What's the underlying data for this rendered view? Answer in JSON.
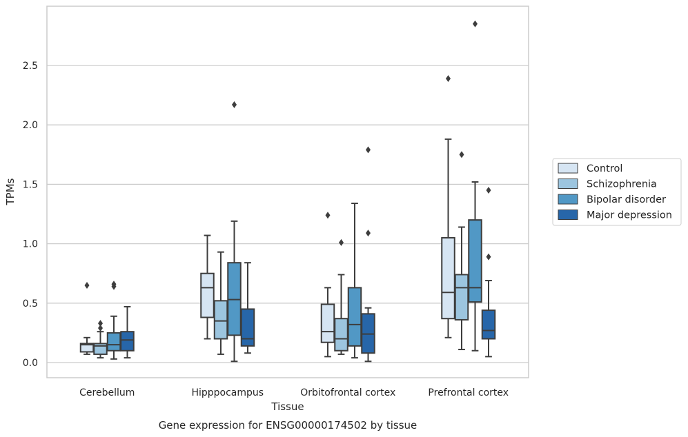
{
  "chart_data": {
    "type": "box",
    "xlabel": "Tissue",
    "ylabel": "TPMs",
    "caption": "Gene expression for ENSG00000174502 by tissue",
    "ylim": [
      -0.12,
      3.0
    ],
    "yticks": [
      "0.0",
      "0.5",
      "1.0",
      "1.5",
      "2.0",
      "2.5"
    ],
    "ytick_values": [
      0.0,
      0.5,
      1.0,
      1.5,
      2.0,
      2.5
    ],
    "grid": "horizontal",
    "legend_position": "right",
    "categories": [
      "Cerebellum",
      "Hipppocampus",
      "Orbitofrontal cortex",
      "Prefrontal cortex"
    ],
    "series": [
      {
        "name": "Control",
        "color": "#d6e5f3",
        "boxes": [
          {
            "min": 0.07,
            "q1": 0.09,
            "median": 0.15,
            "q3": 0.16,
            "max": 0.21,
            "outliers": [
              0.65
            ]
          },
          {
            "min": 0.2,
            "q1": 0.38,
            "median": 0.63,
            "q3": 0.75,
            "max": 1.07,
            "outliers": []
          },
          {
            "min": 0.05,
            "q1": 0.17,
            "median": 0.26,
            "q3": 0.49,
            "max": 0.63,
            "outliers": [
              1.24
            ]
          },
          {
            "min": 0.21,
            "q1": 0.37,
            "median": 0.59,
            "q3": 1.05,
            "max": 1.88,
            "outliers": [
              2.39
            ]
          }
        ]
      },
      {
        "name": "Schizophrenia",
        "color": "#9cc5df",
        "boxes": [
          {
            "min": 0.04,
            "q1": 0.07,
            "median": 0.14,
            "q3": 0.16,
            "max": 0.26,
            "outliers": [
              0.29,
              0.33
            ]
          },
          {
            "min": 0.07,
            "q1": 0.2,
            "median": 0.35,
            "q3": 0.52,
            "max": 0.93,
            "outliers": []
          },
          {
            "min": 0.07,
            "q1": 0.1,
            "median": 0.2,
            "q3": 0.37,
            "max": 0.74,
            "outliers": [
              1.01
            ]
          },
          {
            "min": 0.11,
            "q1": 0.36,
            "median": 0.63,
            "q3": 0.74,
            "max": 1.14,
            "outliers": [
              1.75
            ]
          }
        ]
      },
      {
        "name": "Bipolar disorder",
        "color": "#5198c5",
        "boxes": [
          {
            "min": 0.03,
            "q1": 0.1,
            "median": 0.15,
            "q3": 0.25,
            "max": 0.39,
            "outliers": [
              0.64,
              0.66
            ]
          },
          {
            "min": 0.01,
            "q1": 0.23,
            "median": 0.53,
            "q3": 0.84,
            "max": 1.19,
            "outliers": [
              2.17
            ]
          },
          {
            "min": 0.04,
            "q1": 0.14,
            "median": 0.32,
            "q3": 0.63,
            "max": 1.34,
            "outliers": []
          },
          {
            "min": 0.1,
            "q1": 0.51,
            "median": 0.63,
            "q3": 1.2,
            "max": 1.52,
            "outliers": [
              2.85
            ]
          }
        ]
      },
      {
        "name": "Major depression",
        "color": "#2766a9",
        "boxes": [
          {
            "min": 0.04,
            "q1": 0.1,
            "median": 0.19,
            "q3": 0.26,
            "max": 0.47,
            "outliers": []
          },
          {
            "min": 0.08,
            "q1": 0.14,
            "median": 0.2,
            "q3": 0.45,
            "max": 0.84,
            "outliers": []
          },
          {
            "min": 0.01,
            "q1": 0.08,
            "median": 0.24,
            "q3": 0.41,
            "max": 0.46,
            "outliers": [
              1.09,
              1.79
            ]
          },
          {
            "min": 0.05,
            "q1": 0.2,
            "median": 0.27,
            "q3": 0.44,
            "max": 0.69,
            "outliers": [
              0.89,
              1.45
            ]
          }
        ]
      }
    ]
  }
}
